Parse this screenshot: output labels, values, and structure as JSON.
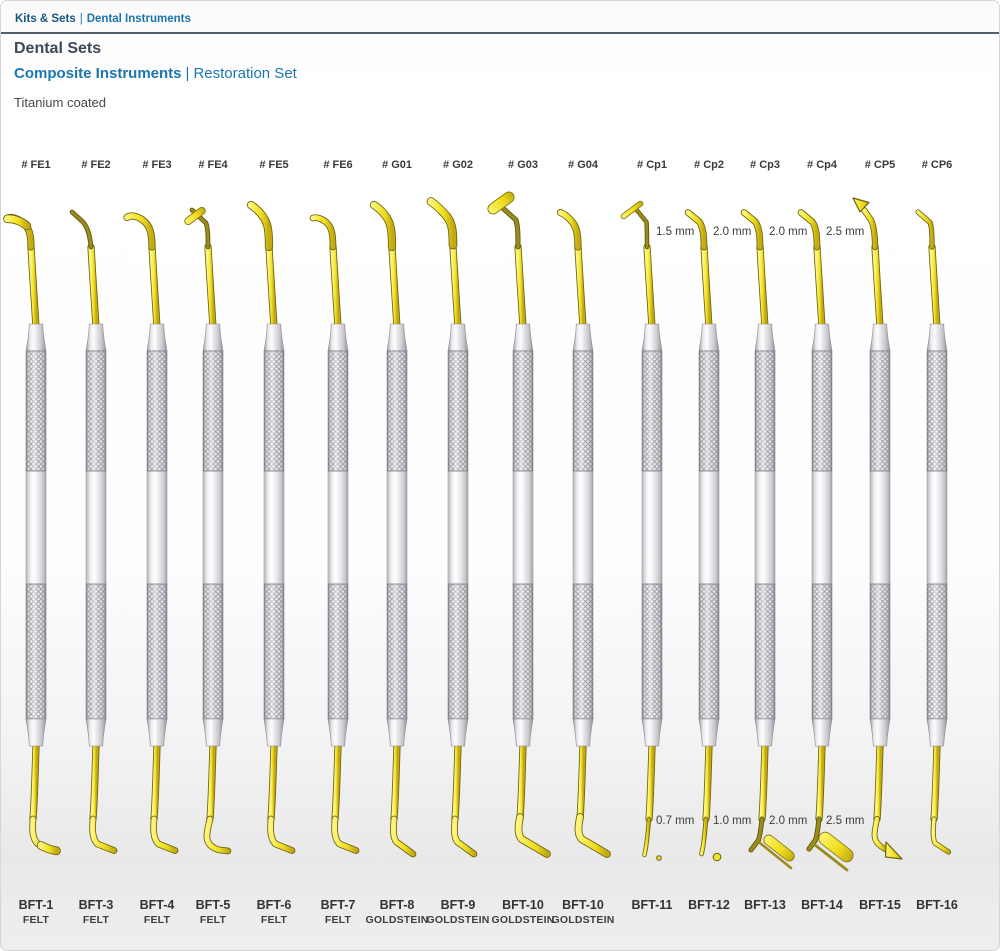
{
  "page": {
    "breadcrumb": {
      "section": "Kits & Sets",
      "separator": "|",
      "subsection": "Dental Instruments"
    },
    "title": "Dental Sets",
    "subtitle": {
      "primary": "Composite Instruments",
      "separator": "|",
      "secondary": "Restoration Set"
    },
    "coating_note": "Titanium coated"
  },
  "colors": {
    "accent_blue": "#1b76af",
    "dark_blue": "#16567f",
    "title_gray": "#3d4a57",
    "instrument_yellow": "#f2e436",
    "tip_outline_olive": "#6b6110",
    "handle_gray": "#d8d8dc",
    "label_gray": "#383838"
  },
  "instruments": [
    {
      "top_code": "# FE1",
      "bottom_code": "BFT-1",
      "material": "FELT",
      "top_tip": "hook-left-paddle",
      "bottom_tip": "foot-right-paddle"
    },
    {
      "top_code": "# FE2",
      "bottom_code": "BFT-3",
      "material": "FELT",
      "top_tip": "thin-needle-left",
      "bottom_tip": "foot-right"
    },
    {
      "top_code": "# FE3",
      "bottom_code": "BFT-4",
      "material": "FELT",
      "top_tip": "hook-left",
      "bottom_tip": "foot-right"
    },
    {
      "top_code": "# FE4",
      "bottom_code": "BFT-5",
      "material": "FELT",
      "top_tip": "needle-paddle",
      "bottom_tip": "s-foot-right"
    },
    {
      "top_code": "# FE5",
      "bottom_code": "BFT-6",
      "material": "FELT",
      "top_tip": "thick-bend-left",
      "bottom_tip": "foot-right"
    },
    {
      "top_code": "# FE6",
      "bottom_code": "BFT-7",
      "material": "FELT",
      "top_tip": "hook-left-small",
      "bottom_tip": "foot-right"
    },
    {
      "top_code": "# G01",
      "bottom_code": "BFT-8",
      "material": "GOLDSTEIN",
      "top_tip": "thick-bend-left",
      "bottom_tip": "foot-right-diag"
    },
    {
      "top_code": "# G02",
      "bottom_code": "BFT-9",
      "material": "GOLDSTEIN",
      "top_tip": "thick-bend-left-large",
      "bottom_tip": "foot-right-diag"
    },
    {
      "top_code": "# G03",
      "bottom_code": "BFT-10",
      "material": "GOLDSTEIN",
      "top_tip": "needle-paddle-large",
      "bottom_tip": "foot-right-long"
    },
    {
      "top_code": "# G04",
      "bottom_code": "BFT-10",
      "material": "GOLDSTEIN",
      "top_tip": "bend-left-short",
      "bottom_tip": "foot-right-long"
    },
    {
      "top_code": "# Cp1",
      "bottom_code": "BFT-11",
      "material": "",
      "top_tip": "needle-thin-paddle",
      "bottom_tip": "ball-small",
      "top_note": "1.5 mm",
      "bottom_note": "0.7 mm"
    },
    {
      "top_code": "# Cp2",
      "bottom_code": "BFT-12",
      "material": "",
      "top_tip": "foot-left",
      "bottom_tip": "ball",
      "top_note": "2.0 mm",
      "bottom_note": "1.0 mm"
    },
    {
      "top_code": "# Cp3",
      "bottom_code": "BFT-13",
      "material": "",
      "top_tip": "foot-left",
      "bottom_tip": "needle-paddle-angled",
      "top_note": "2.0 mm",
      "bottom_note": "2.0 mm"
    },
    {
      "top_code": "# Cp4",
      "bottom_code": "BFT-14",
      "material": "",
      "top_tip": "foot-left",
      "bottom_tip": "needle-paddle-angled-large",
      "top_note": "2.5 mm",
      "bottom_note": "2.5 mm"
    },
    {
      "top_code": "# CP5",
      "bottom_code": "BFT-15",
      "material": "",
      "top_tip": "arrow-up-left",
      "bottom_tip": "arrow-down-right"
    },
    {
      "top_code": "# CP6",
      "bottom_code": "BFT-16",
      "material": "",
      "top_tip": "thin-foot-left",
      "bottom_tip": "thin-foot-right"
    }
  ]
}
